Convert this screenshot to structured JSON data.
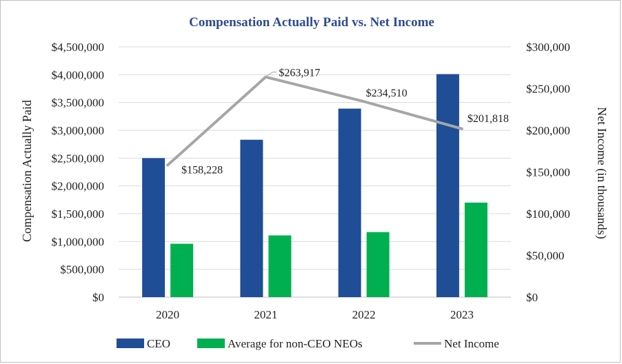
{
  "chart_data": {
    "type": "bar",
    "title": "Compensation Actually Paid vs. Net Income",
    "categories": [
      "2020",
      "2021",
      "2022",
      "2023"
    ],
    "ylabel": "Compensation Actually Paid",
    "y2label": "Net Income (in thousands)",
    "ylim": [
      0,
      4500000
    ],
    "y2lim": [
      0,
      300000
    ],
    "y_ticks": [
      "$0",
      "$500,000",
      "$1,000,000",
      "$1,500,000",
      "$2,000,000",
      "$2,500,000",
      "$3,000,000",
      "$3,500,000",
      "$4,000,000",
      "$4,500,000"
    ],
    "y2_ticks": [
      "$0",
      "$50,000",
      "$100,000",
      "$150,000",
      "$200,000",
      "$250,000",
      "$300,000"
    ],
    "series": [
      {
        "name": "CEO",
        "type": "bar",
        "axis": "left",
        "color": "#1f4e96",
        "values": [
          2500000,
          2830000,
          3390000,
          4010000
        ]
      },
      {
        "name": "Average for non-CEO NEOs",
        "type": "bar",
        "axis": "left",
        "color": "#00b050",
        "values": [
          960000,
          1110000,
          1170000,
          1700000
        ]
      },
      {
        "name": "Net Income",
        "type": "line",
        "axis": "right",
        "color": "#a6a6a6",
        "values": [
          158228,
          263917,
          234510,
          201818
        ],
        "labels": [
          "$158,228",
          "$263,917",
          "$234,510",
          "$201,818"
        ]
      }
    ],
    "grid": true,
    "legend": "bottom"
  }
}
